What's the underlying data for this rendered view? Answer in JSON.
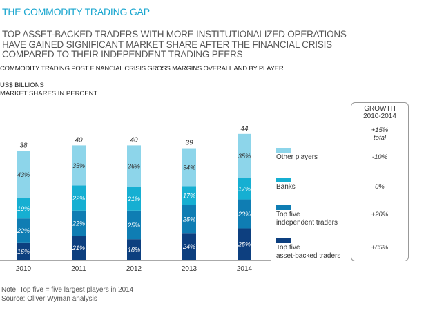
{
  "title": "THE COMMODITY TRADING GAP",
  "subtitle_lines": [
    "TOP ASSET-BACKED TRADERS WITH MORE INSTITUTIONALIZED OPERATIONS",
    "HAVE GAINED SIGNIFICANT MARKET SHARE AFTER THE FINANCIAL CRISIS",
    "COMPARED TO THEIR INDEPENDENT TRADING PEERS"
  ],
  "units": [
    "US$ BILLIONS",
    "MARKET SHARES IN PERCENT"
  ],
  "growth": {
    "header": [
      "GROWTH",
      "2010-2014"
    ],
    "total_value": "+15%",
    "total_label": "total",
    "values": [
      "-10%",
      "0%",
      "+20%",
      "+85%"
    ]
  },
  "footer": {
    "note": "Note: Top five = five largest players in 2014",
    "source": "Source: Oliver Wyman analysis"
  },
  "chart_data": {
    "type": "bar",
    "stacked": true,
    "title": "COMMODITY TRADING POST FINANCIAL CRISIS GROSS MARGINS OVERALL AND BY PLAYER",
    "xlabel": "",
    "ylabel": "US$ BILLIONS",
    "categories": [
      "2010",
      "2011",
      "2012",
      "2013",
      "2014"
    ],
    "totals": [
      38,
      40,
      40,
      39,
      44
    ],
    "grid": false,
    "legend_position": "right",
    "series": [
      {
        "name": "Top five asset-backed traders",
        "legend_lines": [
          "Top five",
          "asset-backed traders"
        ],
        "color": "#0d3f7f",
        "values": [
          16,
          21,
          18,
          24,
          25
        ]
      },
      {
        "name": "Top five independent traders",
        "legend_lines": [
          "Top five",
          "independent traders"
        ],
        "color": "#0f7db3",
        "values": [
          22,
          22,
          25,
          25,
          23
        ]
      },
      {
        "name": "Banks",
        "legend_lines": [
          "Banks"
        ],
        "color": "#16afd2",
        "values": [
          19,
          22,
          21,
          17,
          17
        ]
      },
      {
        "name": "Other players",
        "legend_lines": [
          "Other players"
        ],
        "color": "#8dd5ea",
        "values": [
          43,
          35,
          36,
          34,
          35
        ]
      }
    ],
    "value_unit": "%"
  }
}
